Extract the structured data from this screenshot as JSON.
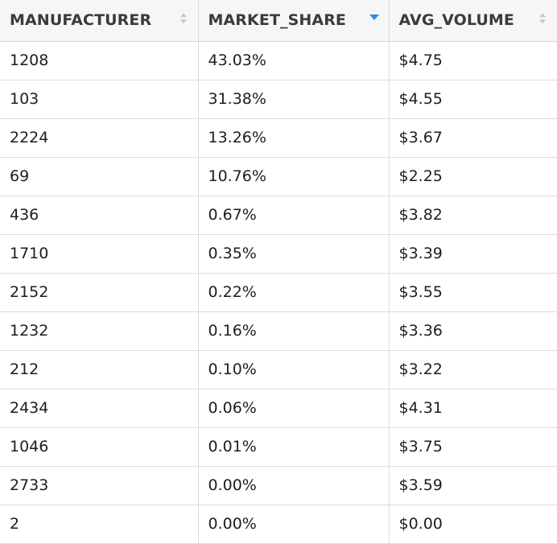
{
  "table": {
    "columns": [
      {
        "label": "MANUFACTURER",
        "sort": "none"
      },
      {
        "label": "MARKET_SHARE",
        "sort": "desc"
      },
      {
        "label": "AVG_VOLUME",
        "sort": "none"
      }
    ],
    "rows": [
      [
        "1208",
        "43.03%",
        "$4.75"
      ],
      [
        "103",
        "31.38%",
        "$4.55"
      ],
      [
        "2224",
        "13.26%",
        "$3.67"
      ],
      [
        "69",
        "10.76%",
        "$2.25"
      ],
      [
        "436",
        "0.67%",
        "$3.82"
      ],
      [
        "1710",
        "0.35%",
        "$3.39"
      ],
      [
        "2152",
        "0.22%",
        "$3.55"
      ],
      [
        "1232",
        "0.16%",
        "$3.36"
      ],
      [
        "212",
        "0.10%",
        "$3.22"
      ],
      [
        "2434",
        "0.06%",
        "$4.31"
      ],
      [
        "1046",
        "0.01%",
        "$3.75"
      ],
      [
        "2733",
        "0.00%",
        "$3.59"
      ],
      [
        "2",
        "0.00%",
        "$0.00"
      ]
    ]
  },
  "colors": {
    "header_bg": "#f6f6f6",
    "border": "#dcdcdc",
    "sort_active": "#2a8de6",
    "sort_inactive": "#c8c8c8"
  }
}
